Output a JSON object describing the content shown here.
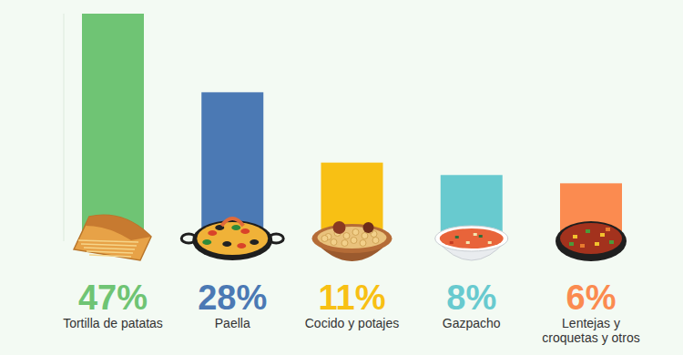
{
  "chart_data": {
    "type": "bar",
    "categories": [
      "Tortilla de patatas",
      "Paella",
      "Cocido y potajes",
      "Gazpacho",
      "Lentejas y croquetas y otros"
    ],
    "values": [
      47,
      28,
      11,
      8,
      6
    ],
    "value_labels": [
      "47%",
      "28%",
      "11%",
      "8%",
      "6%"
    ],
    "colors": [
      "#6fc474",
      "#4b79b4",
      "#f8c014",
      "#68cacf",
      "#fb8b50"
    ],
    "ylim": [
      -8,
      47
    ],
    "data_labels": true,
    "tick_labels": false,
    "grid": false
  }
}
